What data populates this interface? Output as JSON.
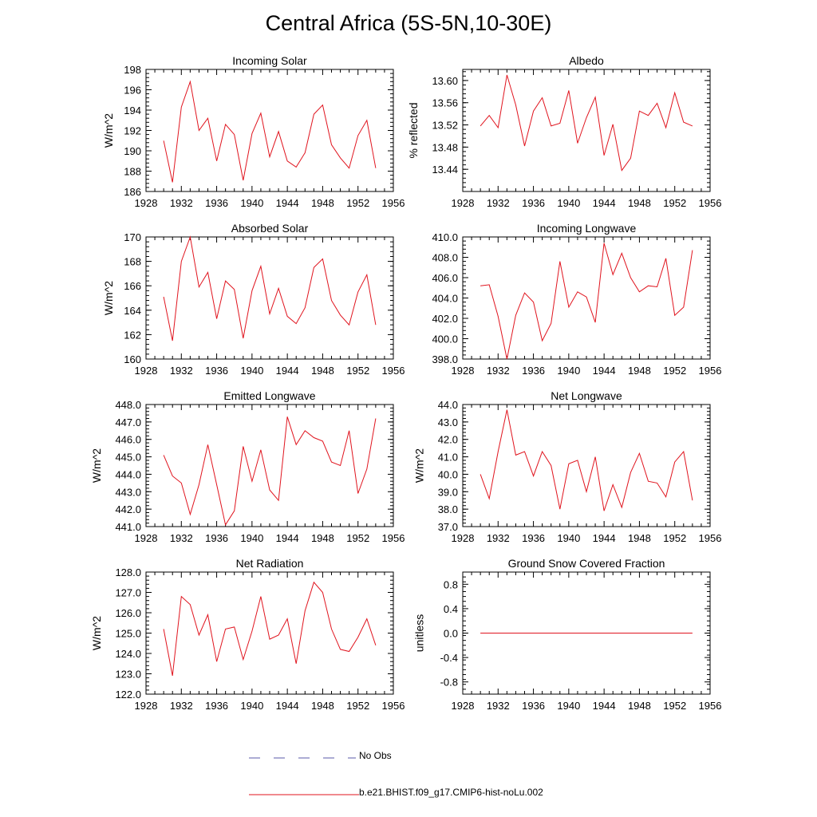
{
  "figure_title": "Central Africa (5S-5N,10-30E)",
  "legend": [
    {
      "label": "No Obs",
      "color": "#5a5aa8",
      "style": "dashed"
    },
    {
      "label": "b.e21.BHIST.f09_g17.CMIP6-hist-noLu.002",
      "color": "#e0141e",
      "style": "solid"
    }
  ],
  "colors": {
    "series": "#e0141e",
    "axis": "#000000"
  },
  "chart_data": [
    {
      "type": "line",
      "title": "Incoming Solar",
      "ylabel": "W/m^2",
      "xlim": [
        1928,
        1956
      ],
      "ylim": [
        186,
        198
      ],
      "xticks": [
        "1928",
        "1932",
        "1936",
        "1940",
        "1944",
        "1948",
        "1952",
        "1956"
      ],
      "yticks": [
        "186",
        "188",
        "190",
        "192",
        "194",
        "196",
        "198"
      ],
      "x": [
        1930,
        1931,
        1932,
        1933,
        1934,
        1935,
        1936,
        1937,
        1938,
        1939,
        1940,
        1941,
        1942,
        1943,
        1944,
        1945,
        1946,
        1947,
        1948,
        1949,
        1950,
        1951,
        1952,
        1953,
        1954
      ],
      "series": [
        {
          "name": "b.e21.BHIST.f09_g17.CMIP6-hist-noLu.002",
          "values": [
            191.0,
            186.9,
            194.3,
            196.8,
            192.0,
            193.2,
            189.0,
            192.6,
            191.6,
            187.1,
            191.7,
            193.7,
            189.4,
            191.9,
            189.0,
            188.4,
            189.8,
            193.6,
            194.5,
            190.6,
            189.3,
            188.3,
            191.5,
            193.0,
            188.3
          ]
        }
      ]
    },
    {
      "type": "line",
      "title": "Albedo",
      "ylabel": "% reflected",
      "xlim": [
        1928,
        1956
      ],
      "ylim": [
        13.4,
        13.62
      ],
      "xticks": [
        "1928",
        "1932",
        "1936",
        "1940",
        "1944",
        "1948",
        "1952",
        "1956"
      ],
      "yticks": [
        "13.44",
        "13.48",
        "13.52",
        "13.56",
        "13.60"
      ],
      "x": [
        1930,
        1931,
        1932,
        1933,
        1934,
        1935,
        1936,
        1937,
        1938,
        1939,
        1940,
        1941,
        1942,
        1943,
        1944,
        1945,
        1946,
        1947,
        1948,
        1949,
        1950,
        1951,
        1952,
        1953,
        1954
      ],
      "series": [
        {
          "name": "b.e21.BHIST.f09_g17.CMIP6-hist-noLu.002",
          "values": [
            13.518,
            13.537,
            13.515,
            13.61,
            13.556,
            13.482,
            13.545,
            13.569,
            13.518,
            13.523,
            13.582,
            13.487,
            13.533,
            13.57,
            13.465,
            13.521,
            13.438,
            13.46,
            13.545,
            13.537,
            13.559,
            13.515,
            13.578,
            13.525,
            13.518
          ]
        }
      ]
    },
    {
      "type": "line",
      "title": "Absorbed Solar",
      "ylabel": "W/m^2",
      "xlim": [
        1928,
        1956
      ],
      "ylim": [
        160,
        170
      ],
      "xticks": [
        "1928",
        "1932",
        "1936",
        "1940",
        "1944",
        "1948",
        "1952",
        "1956"
      ],
      "yticks": [
        "160",
        "162",
        "164",
        "166",
        "168",
        "170"
      ],
      "x": [
        1930,
        1931,
        1932,
        1933,
        1934,
        1935,
        1936,
        1937,
        1938,
        1939,
        1940,
        1941,
        1942,
        1943,
        1944,
        1945,
        1946,
        1947,
        1948,
        1949,
        1950,
        1951,
        1952,
        1953,
        1954
      ],
      "series": [
        {
          "name": "b.e21.BHIST.f09_g17.CMIP6-hist-noLu.002",
          "values": [
            165.1,
            161.5,
            168.0,
            170.0,
            165.9,
            167.1,
            163.3,
            166.4,
            165.7,
            161.7,
            165.6,
            167.6,
            163.7,
            165.8,
            163.5,
            162.9,
            164.2,
            167.5,
            168.2,
            164.8,
            163.6,
            162.8,
            165.5,
            166.9,
            162.8
          ]
        }
      ]
    },
    {
      "type": "line",
      "title": "Incoming Longwave",
      "ylabel": "",
      "xlim": [
        1928,
        1956
      ],
      "ylim": [
        398,
        410
      ],
      "xticks": [
        "1928",
        "1932",
        "1936",
        "1940",
        "1944",
        "1948",
        "1952",
        "1956"
      ],
      "yticks": [
        "398.0",
        "400.0",
        "402.0",
        "404.0",
        "406.0",
        "408.0",
        "410.0"
      ],
      "x": [
        1930,
        1931,
        1932,
        1933,
        1934,
        1935,
        1936,
        1937,
        1938,
        1939,
        1940,
        1941,
        1942,
        1943,
        1944,
        1945,
        1946,
        1947,
        1948,
        1949,
        1950,
        1951,
        1952,
        1953,
        1954
      ],
      "series": [
        {
          "name": "b.e21.BHIST.f09_g17.CMIP6-hist-noLu.002",
          "values": [
            405.2,
            405.3,
            402.2,
            398.0,
            402.3,
            404.5,
            403.6,
            399.8,
            401.5,
            407.6,
            403.1,
            404.6,
            404.1,
            401.6,
            409.4,
            406.3,
            408.4,
            406.0,
            404.6,
            405.2,
            405.1,
            407.9,
            402.3,
            403.1,
            408.7
          ]
        }
      ]
    },
    {
      "type": "line",
      "title": "Emitted Longwave",
      "ylabel": "W/m^2",
      "xlim": [
        1928,
        1956
      ],
      "ylim": [
        441,
        448
      ],
      "xticks": [
        "1928",
        "1932",
        "1936",
        "1940",
        "1944",
        "1948",
        "1952",
        "1956"
      ],
      "yticks": [
        "441.0",
        "442.0",
        "443.0",
        "444.0",
        "445.0",
        "446.0",
        "447.0",
        "448.0"
      ],
      "x": [
        1930,
        1931,
        1932,
        1933,
        1934,
        1935,
        1936,
        1937,
        1938,
        1939,
        1940,
        1941,
        1942,
        1943,
        1944,
        1945,
        1946,
        1947,
        1948,
        1949,
        1950,
        1951,
        1952,
        1953,
        1954
      ],
      "series": [
        {
          "name": "b.e21.BHIST.f09_g17.CMIP6-hist-noLu.002",
          "values": [
            445.1,
            443.9,
            443.5,
            441.7,
            443.4,
            445.7,
            443.4,
            441.1,
            441.9,
            445.6,
            443.6,
            445.4,
            443.1,
            442.5,
            447.3,
            445.7,
            446.5,
            446.1,
            445.9,
            444.7,
            444.5,
            446.5,
            442.9,
            444.3,
            447.2
          ]
        }
      ]
    },
    {
      "type": "line",
      "title": "Net Longwave",
      "ylabel": "W/m^2",
      "xlim": [
        1928,
        1956
      ],
      "ylim": [
        37,
        44
      ],
      "xticks": [
        "1928",
        "1932",
        "1936",
        "1940",
        "1944",
        "1948",
        "1952",
        "1956"
      ],
      "yticks": [
        "37.0",
        "38.0",
        "39.0",
        "40.0",
        "41.0",
        "42.0",
        "43.0",
        "44.0"
      ],
      "x": [
        1930,
        1931,
        1932,
        1933,
        1934,
        1935,
        1936,
        1937,
        1938,
        1939,
        1940,
        1941,
        1942,
        1943,
        1944,
        1945,
        1946,
        1947,
        1948,
        1949,
        1950,
        1951,
        1952,
        1953,
        1954
      ],
      "series": [
        {
          "name": "b.e21.BHIST.f09_g17.CMIP6-hist-noLu.002",
          "values": [
            40.0,
            38.6,
            41.3,
            43.7,
            41.1,
            41.3,
            39.9,
            41.3,
            40.5,
            38.0,
            40.6,
            40.8,
            39.0,
            41.0,
            37.9,
            39.4,
            38.1,
            40.1,
            41.2,
            39.6,
            39.5,
            38.7,
            40.7,
            41.3,
            38.5
          ]
        }
      ]
    },
    {
      "type": "line",
      "title": "Net Radiation",
      "ylabel": "W/m^2",
      "xlim": [
        1928,
        1956
      ],
      "ylim": [
        122,
        128
      ],
      "xticks": [
        "1928",
        "1932",
        "1936",
        "1940",
        "1944",
        "1948",
        "1952",
        "1956"
      ],
      "yticks": [
        "122.0",
        "123.0",
        "124.0",
        "125.0",
        "126.0",
        "127.0",
        "128.0"
      ],
      "x": [
        1930,
        1931,
        1932,
        1933,
        1934,
        1935,
        1936,
        1937,
        1938,
        1939,
        1940,
        1941,
        1942,
        1943,
        1944,
        1945,
        1946,
        1947,
        1948,
        1949,
        1950,
        1951,
        1952,
        1953,
        1954
      ],
      "series": [
        {
          "name": "b.e21.BHIST.f09_g17.CMIP6-hist-noLu.002",
          "values": [
            125.2,
            122.9,
            126.8,
            126.4,
            124.9,
            125.9,
            123.6,
            125.2,
            125.3,
            123.7,
            125.1,
            126.8,
            124.7,
            124.9,
            125.7,
            123.5,
            126.1,
            127.5,
            127.0,
            125.2,
            124.2,
            124.1,
            124.8,
            125.7,
            124.4
          ]
        }
      ]
    },
    {
      "type": "line",
      "title": "Ground Snow Covered Fraction",
      "ylabel": "unitless",
      "xlim": [
        1928,
        1956
      ],
      "ylim": [
        -1.0,
        1.0
      ],
      "xticks": [
        "1928",
        "1932",
        "1936",
        "1940",
        "1944",
        "1948",
        "1952",
        "1956"
      ],
      "yticks": [
        "-0.8",
        "-0.4",
        "0.0",
        "0.4",
        "0.8"
      ],
      "x": [
        1930,
        1931,
        1932,
        1933,
        1934,
        1935,
        1936,
        1937,
        1938,
        1939,
        1940,
        1941,
        1942,
        1943,
        1944,
        1945,
        1946,
        1947,
        1948,
        1949,
        1950,
        1951,
        1952,
        1953,
        1954
      ],
      "series": [
        {
          "name": "b.e21.BHIST.f09_g17.CMIP6-hist-noLu.002",
          "values": [
            0,
            0,
            0,
            0,
            0,
            0,
            0,
            0,
            0,
            0,
            0,
            0,
            0,
            0,
            0,
            0,
            0,
            0,
            0,
            0,
            0,
            0,
            0,
            0,
            0
          ]
        }
      ]
    }
  ]
}
